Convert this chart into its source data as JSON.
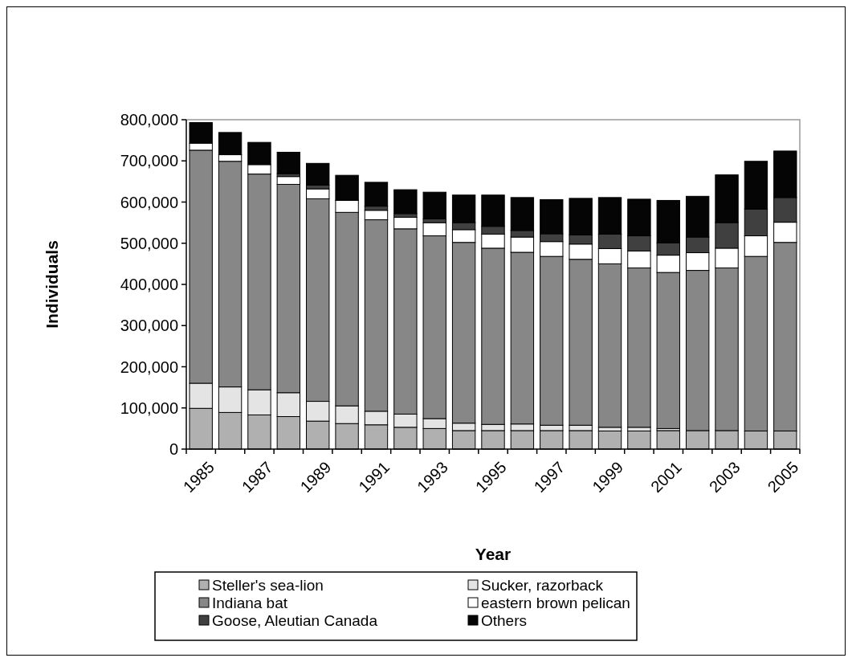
{
  "chart_data": {
    "type": "bar",
    "stacked": true,
    "xlabel": "Year",
    "ylabel": "Individuals",
    "categories": [
      "1985",
      null,
      "1987",
      null,
      "1989",
      null,
      "1991",
      null,
      "1993",
      null,
      "1995",
      null,
      "1997",
      null,
      "1999",
      null,
      "2001",
      null,
      "2003",
      null,
      "2005"
    ],
    "series": [
      {
        "name": "Steller's sea-lion",
        "color": "#b0b0b0",
        "values": [
          99000,
          89000,
          83000,
          79000,
          68000,
          62000,
          59000,
          53000,
          50000,
          45000,
          45000,
          45000,
          45000,
          45000,
          44000,
          44000,
          45000,
          45000,
          45000,
          44000,
          44000
        ]
      },
      {
        "name": "Sucker, razorback",
        "color": "#e4e4e4",
        "values": [
          61000,
          62000,
          61000,
          58000,
          48000,
          43000,
          33000,
          32000,
          24000,
          18000,
          15000,
          16000,
          13000,
          13000,
          9000,
          9000,
          5000,
          0,
          0,
          0,
          0
        ]
      },
      {
        "name": "Indiana bat",
        "color": "#878787",
        "values": [
          566000,
          548000,
          524000,
          506000,
          492000,
          470000,
          465000,
          450000,
          444000,
          439000,
          428000,
          417000,
          410000,
          403000,
          397000,
          387000,
          379000,
          389000,
          395000,
          424000,
          458000
        ]
      },
      {
        "name": "eastern brown pelican",
        "color": "#ffffff",
        "values": [
          17000,
          16000,
          23000,
          19000,
          24000,
          29000,
          23000,
          28000,
          32000,
          31000,
          34000,
          37000,
          36000,
          37000,
          37000,
          41000,
          42000,
          43000,
          48000,
          50000,
          49000
        ]
      },
      {
        "name": "Goose, Aleutian Canada",
        "color": "#404040",
        "values": [
          0,
          0,
          0,
          7000,
          9000,
          0,
          10000,
          9000,
          9000,
          17000,
          19000,
          16000,
          19000,
          22000,
          35000,
          37000,
          30000,
          38000,
          62000,
          65000,
          60000
        ]
      },
      {
        "name": "Others",
        "color": "#050505",
        "values": [
          50000,
          54000,
          54000,
          52000,
          53000,
          61000,
          58000,
          58000,
          65000,
          67000,
          76000,
          80000,
          83000,
          89000,
          89000,
          89000,
          103000,
          99000,
          116000,
          116000,
          113000
        ]
      }
    ],
    "ylim": [
      0,
      800000
    ],
    "yticks": [
      {
        "value": 0,
        "label": "0"
      },
      {
        "value": 100000,
        "label": "100,000"
      },
      {
        "value": 200000,
        "label": "200,000"
      },
      {
        "value": 300000,
        "label": "300,000"
      },
      {
        "value": 400000,
        "label": "400,000"
      },
      {
        "value": 500000,
        "label": "500,000"
      },
      {
        "value": 600000,
        "label": "600,000"
      },
      {
        "value": 700000,
        "label": "700,000"
      },
      {
        "value": 800000,
        "label": "800,000"
      }
    ],
    "legend": "bottom"
  }
}
